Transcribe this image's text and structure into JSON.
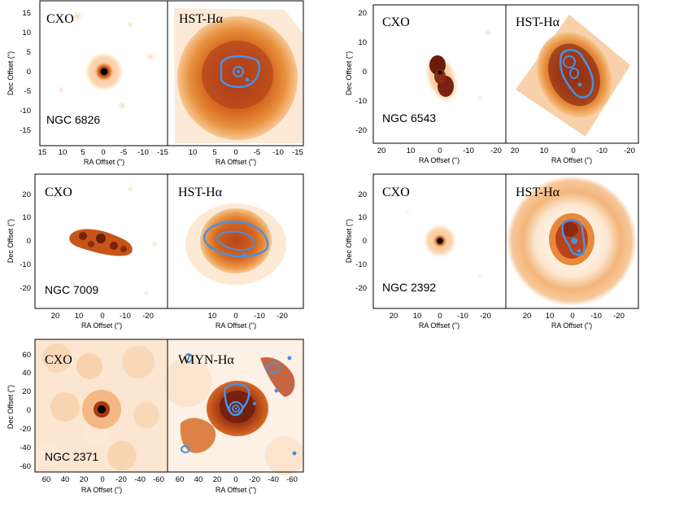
{
  "figure": {
    "axis_labels": {
      "ra": "RA Offset ('')",
      "dec": "Dec Offset ('')"
    },
    "colors": {
      "contour": "#4a90e2",
      "background": "#ffffff",
      "halo_light": "#fde3c8",
      "body_mid": "#e07a2e",
      "body_dark": "#8a2a10",
      "core": "#000000"
    },
    "objects": [
      {
        "name": "NGC 6826",
        "left_title": "CXO",
        "right_title": "HST-Hα",
        "ra_ticks": [
          "15",
          "10",
          "5",
          "0",
          "-5",
          "-10",
          "-15"
        ],
        "dec_ticks": [
          "15",
          "10",
          "5",
          "0",
          "-5",
          "-10",
          "-15"
        ],
        "right_ra_ticks": [
          "10",
          "5",
          "0",
          "-5",
          "-10",
          "-15"
        ]
      },
      {
        "name": "NGC 6543",
        "left_title": "CXO",
        "right_title": "HST-Hα",
        "ra_ticks": [
          "20",
          "10",
          "0",
          "-10",
          "-20"
        ],
        "dec_ticks": [
          "20",
          "10",
          "0",
          "-10",
          "-20"
        ],
        "right_ra_ticks": [
          "20",
          "10",
          "0",
          "-10",
          "-20"
        ]
      },
      {
        "name": "NGC 7009",
        "left_title": "CXO",
        "right_title": "HST-Hα",
        "ra_ticks": [
          "20",
          "10",
          "0",
          "-10",
          "-20"
        ],
        "dec_ticks": [
          "20",
          "10",
          "0",
          "-10",
          "-20"
        ],
        "right_ra_ticks": [
          "10",
          "0",
          "-10",
          "-20"
        ]
      },
      {
        "name": "NGC 2392",
        "left_title": "CXO",
        "right_title": "HST-Hα",
        "ra_ticks": [
          "20",
          "10",
          "0",
          "-10",
          "-20"
        ],
        "dec_ticks": [
          "20",
          "10",
          "0",
          "-10",
          "-20"
        ],
        "right_ra_ticks": [
          "20",
          "10",
          "0",
          "-10",
          "-20"
        ]
      },
      {
        "name": "NGC 2371",
        "left_title": "CXO",
        "right_title": "WIYN-Hα",
        "ra_ticks": [
          "60",
          "40",
          "20",
          "0",
          "-20",
          "-40",
          "-60"
        ],
        "dec_ticks": [
          "60",
          "40",
          "20",
          "0",
          "-20",
          "-40",
          "-60"
        ],
        "right_ra_ticks": [
          "60",
          "40",
          "20",
          "0",
          "-20",
          "-40",
          "-60"
        ]
      }
    ]
  }
}
